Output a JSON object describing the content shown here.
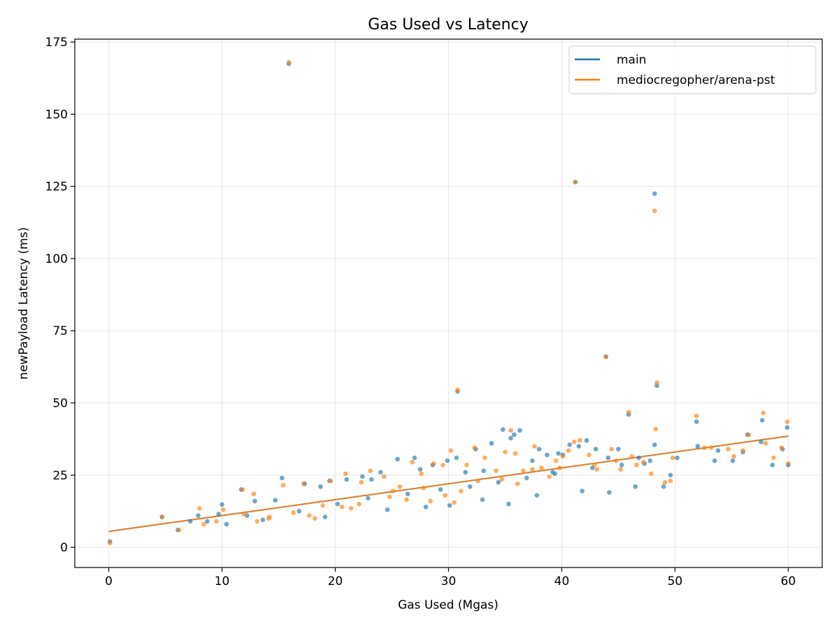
{
  "chart_data": {
    "type": "scatter",
    "title": "Gas Used vs Latency",
    "xlabel": "Gas Used (Mgas)",
    "ylabel": "newPayload Latency (ms)",
    "xlim": [
      -3,
      63
    ],
    "ylim": [
      -7,
      176
    ],
    "x_ticks": [
      0,
      10,
      20,
      30,
      40,
      50,
      60
    ],
    "y_ticks": [
      0,
      25,
      50,
      75,
      100,
      125,
      150,
      175
    ],
    "grid": true,
    "legend_position": "top-right",
    "series": [
      {
        "name": "main",
        "color": "#1f77b4",
        "trend": {
          "x0": 0,
          "y0": 5.5,
          "x1": 60,
          "y1": 38.5
        },
        "points": [
          [
            0.1,
            2.0
          ],
          [
            4.7,
            10.5
          ],
          [
            6.1,
            6.0
          ],
          [
            7.9,
            11.0
          ],
          [
            9.7,
            11.5
          ],
          [
            10.0,
            14.8
          ],
          [
            11.7,
            20.0
          ],
          [
            12.9,
            16.0
          ],
          [
            14.7,
            16.3
          ],
          [
            15.3,
            24.0
          ],
          [
            15.9,
            167.5
          ],
          [
            17.3,
            22.0
          ],
          [
            18.7,
            21.0
          ],
          [
            19.5,
            23.0
          ],
          [
            21.0,
            23.5
          ],
          [
            22.4,
            24.5
          ],
          [
            23.2,
            23.5
          ],
          [
            24.0,
            26.0
          ],
          [
            25.5,
            30.5
          ],
          [
            27.0,
            31.0
          ],
          [
            27.5,
            27.0
          ],
          [
            28.6,
            28.5
          ],
          [
            29.9,
            30.0
          ],
          [
            30.7,
            31.0
          ],
          [
            30.8,
            54.0
          ],
          [
            31.5,
            26.0
          ],
          [
            32.4,
            34.0
          ],
          [
            33.1,
            26.5
          ],
          [
            33.8,
            36.0
          ],
          [
            34.8,
            40.8
          ],
          [
            35.5,
            37.8
          ],
          [
            35.8,
            39.0
          ],
          [
            36.3,
            40.5
          ],
          [
            37.4,
            30.0
          ],
          [
            38.0,
            34.0
          ],
          [
            38.7,
            32.0
          ],
          [
            39.2,
            26.0
          ],
          [
            39.7,
            32.5
          ],
          [
            40.1,
            32.0
          ],
          [
            40.7,
            35.5
          ],
          [
            41.2,
            126.5
          ],
          [
            41.5,
            35.0
          ],
          [
            42.2,
            37.0
          ],
          [
            43.0,
            34.0
          ],
          [
            43.9,
            66.0
          ],
          [
            44.1,
            31.0
          ],
          [
            45.0,
            34.0
          ],
          [
            45.9,
            46.0
          ],
          [
            46.8,
            31.0
          ],
          [
            47.3,
            29.0
          ],
          [
            47.8,
            30.0
          ],
          [
            48.2,
            122.5
          ],
          [
            48.2,
            35.5
          ],
          [
            48.4,
            56.0
          ],
          [
            49.0,
            21.0
          ],
          [
            49.6,
            25.0
          ],
          [
            51.9,
            43.5
          ],
          [
            53.5,
            30.0
          ],
          [
            55.1,
            30.0
          ],
          [
            56.0,
            33.0
          ],
          [
            56.4,
            39.0
          ],
          [
            57.7,
            44.0
          ],
          [
            58.6,
            28.5
          ],
          [
            59.9,
            41.5
          ],
          [
            60.0,
            28.5
          ],
          [
            8.7,
            9.0
          ],
          [
            12.2,
            11.0
          ],
          [
            16.8,
            12.5
          ],
          [
            20.2,
            15.0
          ],
          [
            22.9,
            17.0
          ],
          [
            26.4,
            18.5
          ],
          [
            29.3,
            20.0
          ],
          [
            31.9,
            21.0
          ],
          [
            34.4,
            22.5
          ],
          [
            36.9,
            24.0
          ],
          [
            39.4,
            25.5
          ],
          [
            42.7,
            27.5
          ],
          [
            45.3,
            28.5
          ],
          [
            50.2,
            31.0
          ],
          [
            53.8,
            33.5
          ],
          [
            57.6,
            36.5
          ],
          [
            44.2,
            19.0
          ],
          [
            41.8,
            19.5
          ],
          [
            35.3,
            15.0
          ],
          [
            30.1,
            14.5
          ],
          [
            24.6,
            13.0
          ],
          [
            19.1,
            10.5
          ],
          [
            13.6,
            9.5
          ],
          [
            10.4,
            8.0
          ],
          [
            7.2,
            9.0
          ],
          [
            28.0,
            14.0
          ],
          [
            33.0,
            16.5
          ],
          [
            37.8,
            18.0
          ],
          [
            46.5,
            21.0
          ],
          [
            52.0,
            35.0
          ],
          [
            59.5,
            34.0
          ]
        ]
      },
      {
        "name": "mediocregopher/arena-pst",
        "color": "#ff7f0e",
        "trend": {
          "x0": 0,
          "y0": 5.5,
          "x1": 60,
          "y1": 38.5
        },
        "points": [
          [
            0.1,
            1.5
          ],
          [
            4.7,
            10.5
          ],
          [
            6.2,
            6.0
          ],
          [
            8.0,
            13.5
          ],
          [
            9.5,
            9.0
          ],
          [
            10.1,
            13.0
          ],
          [
            11.8,
            20.0
          ],
          [
            12.8,
            18.5
          ],
          [
            14.2,
            10.5
          ],
          [
            15.4,
            21.5
          ],
          [
            15.9,
            168.0
          ],
          [
            17.2,
            22.0
          ],
          [
            18.9,
            14.5
          ],
          [
            19.6,
            23.0
          ],
          [
            20.9,
            25.5
          ],
          [
            22.3,
            22.5
          ],
          [
            23.1,
            26.5
          ],
          [
            24.3,
            24.5
          ],
          [
            25.7,
            21.0
          ],
          [
            26.8,
            29.5
          ],
          [
            27.6,
            25.5
          ],
          [
            28.7,
            29.0
          ],
          [
            29.5,
            28.5
          ],
          [
            30.2,
            33.5
          ],
          [
            30.8,
            54.5
          ],
          [
            31.6,
            28.5
          ],
          [
            32.3,
            34.5
          ],
          [
            33.2,
            31.0
          ],
          [
            34.2,
            26.5
          ],
          [
            35.0,
            33.0
          ],
          [
            35.5,
            40.5
          ],
          [
            35.9,
            32.5
          ],
          [
            36.6,
            26.5
          ],
          [
            37.6,
            35.0
          ],
          [
            38.2,
            27.5
          ],
          [
            38.9,
            24.5
          ],
          [
            39.5,
            30.0
          ],
          [
            40.1,
            31.5
          ],
          [
            40.6,
            33.5
          ],
          [
            41.1,
            36.5
          ],
          [
            41.2,
            126.5
          ],
          [
            41.6,
            37.0
          ],
          [
            42.4,
            32.0
          ],
          [
            43.1,
            27.0
          ],
          [
            43.9,
            66.0
          ],
          [
            44.4,
            34.0
          ],
          [
            45.2,
            27.0
          ],
          [
            45.9,
            46.8
          ],
          [
            46.6,
            28.5
          ],
          [
            47.2,
            29.5
          ],
          [
            47.9,
            25.5
          ],
          [
            48.2,
            116.5
          ],
          [
            48.3,
            41.0
          ],
          [
            48.4,
            57.0
          ],
          [
            49.1,
            22.5
          ],
          [
            49.6,
            23.0
          ],
          [
            51.9,
            45.5
          ],
          [
            53.2,
            34.5
          ],
          [
            55.2,
            31.5
          ],
          [
            56.0,
            33.5
          ],
          [
            56.5,
            39.0
          ],
          [
            57.8,
            46.5
          ],
          [
            58.7,
            31.0
          ],
          [
            59.9,
            43.5
          ],
          [
            60.0,
            29.0
          ],
          [
            8.4,
            8.0
          ],
          [
            11.9,
            11.5
          ],
          [
            14.1,
            10.0
          ],
          [
            16.3,
            12.0
          ],
          [
            18.2,
            10.0
          ],
          [
            20.6,
            14.0
          ],
          [
            22.1,
            15.0
          ],
          [
            24.8,
            17.5
          ],
          [
            26.3,
            16.5
          ],
          [
            27.8,
            20.5
          ],
          [
            29.7,
            18.0
          ],
          [
            31.1,
            19.5
          ],
          [
            32.6,
            23.0
          ],
          [
            34.7,
            23.5
          ],
          [
            36.1,
            22.0
          ],
          [
            37.4,
            27.0
          ],
          [
            39.8,
            27.5
          ],
          [
            42.9,
            28.5
          ],
          [
            44.8,
            30.0
          ],
          [
            46.2,
            31.5
          ],
          [
            49.8,
            31.0
          ],
          [
            52.6,
            34.5
          ],
          [
            54.7,
            34.0
          ],
          [
            58.0,
            36.0
          ],
          [
            59.4,
            34.5
          ],
          [
            30.5,
            15.5
          ],
          [
            28.4,
            16.0
          ],
          [
            25.1,
            19.5
          ],
          [
            21.4,
            13.5
          ],
          [
            17.7,
            11.0
          ],
          [
            13.1,
            9.0
          ]
        ]
      }
    ]
  }
}
